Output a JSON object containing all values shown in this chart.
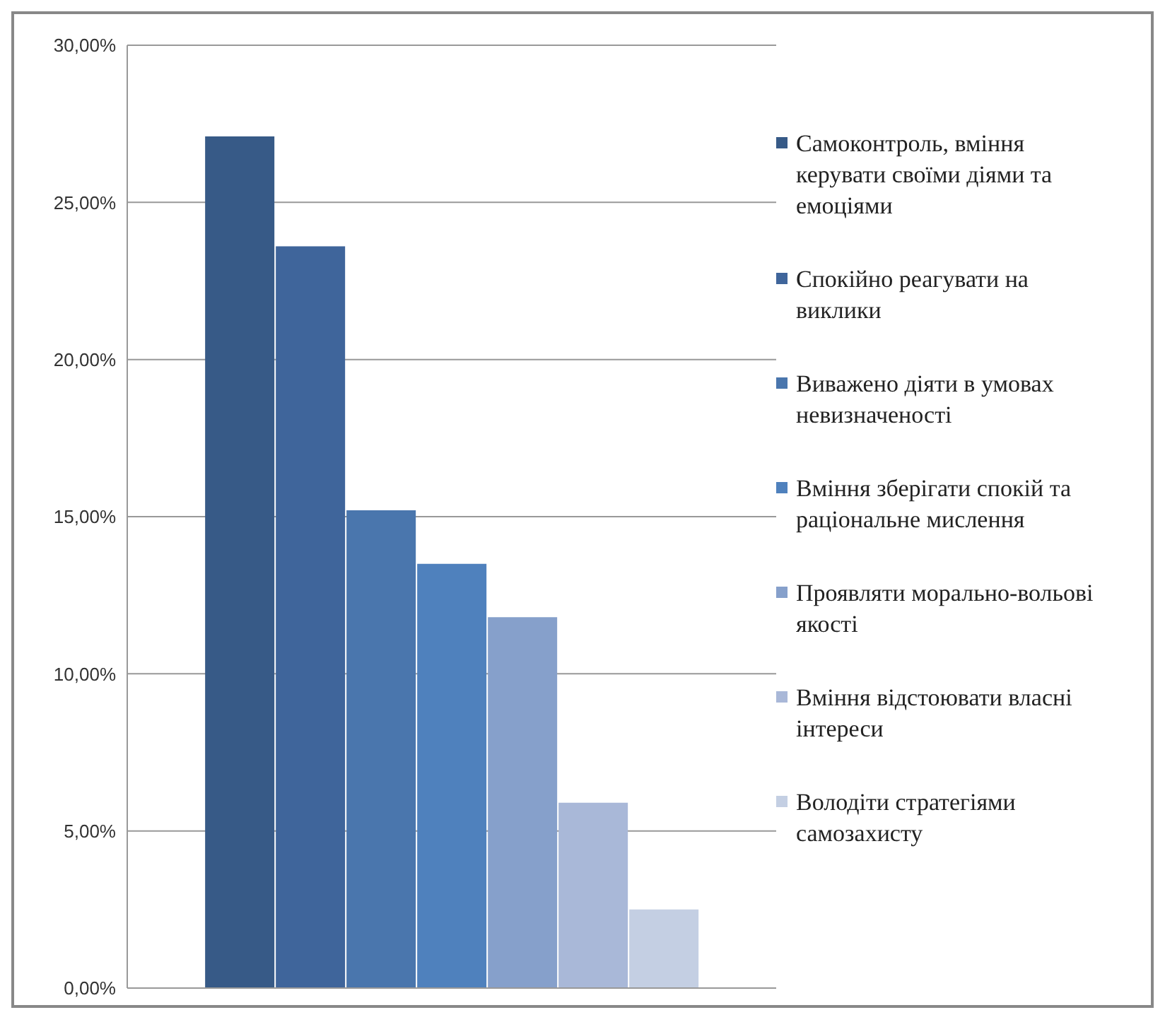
{
  "chart_data": {
    "type": "bar",
    "categories": [
      null
    ],
    "series": [
      {
        "name": "Самоконтроль, вміння керувати своїми діями та емоціями",
        "color": "#375a87",
        "values": [
          27.1
        ]
      },
      {
        "name": "Спокійно реагувати на виклики",
        "color": "#3f659b",
        "values": [
          23.6
        ]
      },
      {
        "name": "Виважено діяти в умовах невизначеності",
        "color": "#4a76ad",
        "values": [
          15.2
        ]
      },
      {
        "name": "Вміння зберігати спокій та раціональне мислення",
        "color": "#4f81bd",
        "values": [
          13.5
        ]
      },
      {
        "name": "Проявляти морально-вольові якості",
        "color": "#86a0cb",
        "values": [
          11.8
        ]
      },
      {
        "name": "Вміння відстоювати власні інтереси",
        "color": "#a9b8d8",
        "values": [
          5.9
        ]
      },
      {
        "name": "Володіти стратегіями самозахисту",
        "color": "#c4cfe3",
        "values": [
          2.5
        ]
      }
    ],
    "ylim": [
      0,
      30
    ],
    "yticks": [
      {
        "value": 0,
        "label": "0,00%"
      },
      {
        "value": 5,
        "label": "5,00%"
      },
      {
        "value": 10,
        "label": "10,00%"
      },
      {
        "value": 15,
        "label": "15,00%"
      },
      {
        "value": 20,
        "label": "20,00%"
      },
      {
        "value": 25,
        "label": "25,00%"
      },
      {
        "value": 30,
        "label": "30,00%"
      }
    ],
    "grid": "y",
    "legend": "right"
  }
}
